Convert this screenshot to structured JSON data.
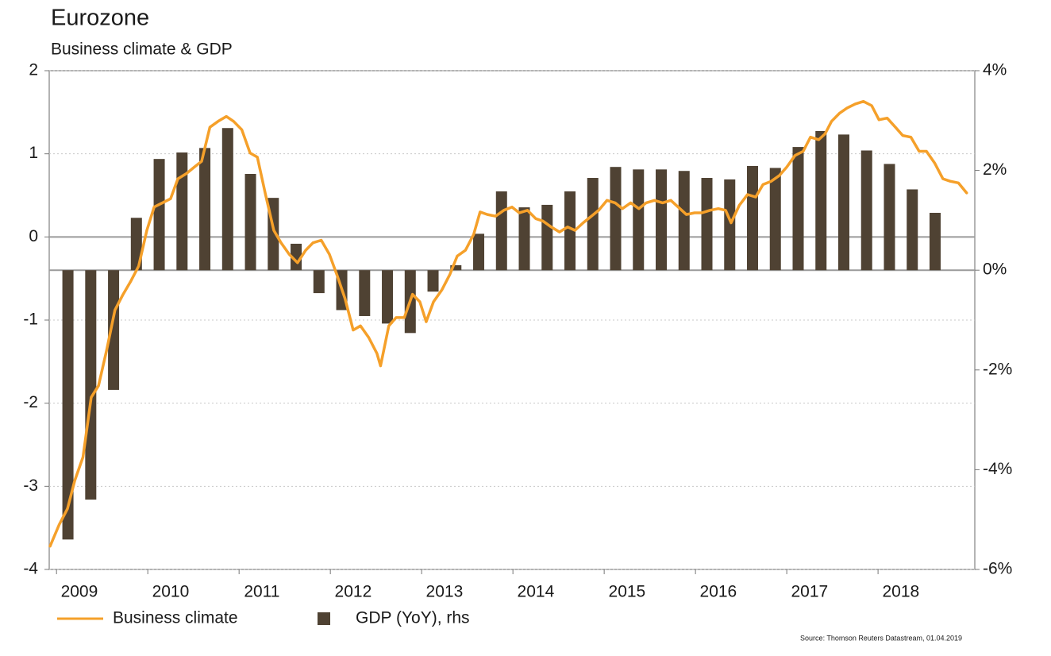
{
  "chart_data": {
    "type": "combo",
    "title": "Eurozone",
    "subtitle": "Business climate & GDP",
    "source": "Source: Thomson Reuters Datastream, 01.04.2019",
    "xlim": [
      2008.92,
      2019.06
    ],
    "xticks": [
      2009,
      2010,
      2011,
      2012,
      2013,
      2014,
      2015,
      2016,
      2017,
      2018
    ],
    "ylim": [
      -4,
      2
    ],
    "yticks": [
      -4,
      -3,
      -2,
      -1,
      0,
      1,
      2
    ],
    "y2lim": [
      -6,
      4
    ],
    "y2ticks": [
      {
        "value": -6,
        "label": "-6%"
      },
      {
        "value": -4,
        "label": "-4%"
      },
      {
        "value": -2,
        "label": "-2%"
      },
      {
        "value": 0,
        "label": "0%"
      },
      {
        "value": 2,
        "label": "2%"
      },
      {
        "value": 4,
        "label": "4%"
      }
    ],
    "grid": true,
    "legend": "bottom-left",
    "series": [
      {
        "name": "Business climate",
        "type": "line",
        "color": "#f5a02a",
        "x": [
          2008.93,
          2009.03,
          2009.12,
          2009.2,
          2009.29,
          2009.38,
          2009.46,
          2009.55,
          2009.64,
          2009.73,
          2009.81,
          2009.9,
          2009.99,
          2010.07,
          2010.16,
          2010.25,
          2010.33,
          2010.42,
          2010.51,
          2010.59,
          2010.68,
          2010.77,
          2010.86,
          2010.94,
          2011.03,
          2011.12,
          2011.2,
          2011.29,
          2011.38,
          2011.46,
          2011.55,
          2011.64,
          2011.73,
          2011.81,
          2011.9,
          2011.99,
          2012.07,
          2012.16,
          2012.25,
          2012.33,
          2012.42,
          2012.51,
          2012.55,
          2012.64,
          2012.72,
          2012.81,
          2012.9,
          2012.98,
          2013.05,
          2013.13,
          2013.22,
          2013.31,
          2013.39,
          2013.48,
          2013.57,
          2013.64,
          2013.72,
          2013.81,
          2013.9,
          2013.99,
          2014.07,
          2014.16,
          2014.25,
          2014.33,
          2014.42,
          2014.51,
          2014.6,
          2014.68,
          2014.77,
          2014.86,
          2014.94,
          2015.03,
          2015.12,
          2015.2,
          2015.29,
          2015.38,
          2015.46,
          2015.55,
          2015.64,
          2015.73,
          2015.81,
          2015.9,
          2015.99,
          2016.07,
          2016.16,
          2016.25,
          2016.33,
          2016.39,
          2016.48,
          2016.57,
          2016.66,
          2016.74,
          2016.83,
          2016.92,
          2017.0,
          2017.09,
          2017.18,
          2017.26,
          2017.35,
          2017.42,
          2017.49,
          2017.58,
          2017.66,
          2017.75,
          2017.84,
          2017.93,
          2018.01,
          2018.1,
          2018.19,
          2018.27,
          2018.36,
          2018.45,
          2018.53,
          2018.62,
          2018.71,
          2018.79,
          2018.88,
          2018.97
        ],
        "values": [
          -3.72,
          -3.46,
          -3.27,
          -2.93,
          -2.65,
          -1.93,
          -1.79,
          -1.36,
          -0.88,
          -0.69,
          -0.54,
          -0.35,
          0.08,
          0.36,
          0.41,
          0.46,
          0.7,
          0.76,
          0.84,
          0.91,
          1.32,
          1.39,
          1.45,
          1.39,
          1.29,
          1.01,
          0.96,
          0.51,
          0.08,
          -0.07,
          -0.21,
          -0.31,
          -0.16,
          -0.07,
          -0.04,
          -0.21,
          -0.45,
          -0.74,
          -1.12,
          -1.07,
          -1.21,
          -1.4,
          -1.55,
          -1.07,
          -0.97,
          -0.97,
          -0.69,
          -0.78,
          -1.02,
          -0.78,
          -0.64,
          -0.45,
          -0.23,
          -0.16,
          0.03,
          0.3,
          0.27,
          0.25,
          0.32,
          0.36,
          0.29,
          0.32,
          0.22,
          0.19,
          0.12,
          0.06,
          0.12,
          0.08,
          0.17,
          0.25,
          0.32,
          0.44,
          0.41,
          0.34,
          0.41,
          0.34,
          0.41,
          0.44,
          0.41,
          0.44,
          0.36,
          0.27,
          0.29,
          0.29,
          0.32,
          0.34,
          0.32,
          0.17,
          0.38,
          0.51,
          0.48,
          0.63,
          0.67,
          0.74,
          0.84,
          0.98,
          1.03,
          1.2,
          1.17,
          1.24,
          1.39,
          1.49,
          1.55,
          1.6,
          1.63,
          1.58,
          1.41,
          1.43,
          1.32,
          1.22,
          1.2,
          1.03,
          1.03,
          0.89,
          0.7,
          0.67,
          0.65,
          0.53
        ]
      },
      {
        "name": "GDP (YoY), rhs",
        "type": "bar",
        "axis": "y2",
        "color": "#4f4233",
        "x": [
          2009.125,
          2009.375,
          2009.625,
          2009.875,
          2010.125,
          2010.375,
          2010.625,
          2010.875,
          2011.125,
          2011.375,
          2011.625,
          2011.875,
          2012.125,
          2012.375,
          2012.625,
          2012.875,
          2013.125,
          2013.375,
          2013.625,
          2013.875,
          2014.125,
          2014.375,
          2014.625,
          2014.875,
          2015.125,
          2015.375,
          2015.625,
          2015.875,
          2016.125,
          2016.375,
          2016.625,
          2016.875,
          2017.125,
          2017.375,
          2017.625,
          2017.875,
          2018.125,
          2018.375,
          2018.625
        ],
        "values": [
          -5.4,
          -4.6,
          -2.4,
          1.05,
          2.23,
          2.36,
          2.45,
          2.85,
          1.93,
          1.45,
          0.53,
          -0.46,
          -0.8,
          -0.92,
          -1.07,
          -1.26,
          -0.43,
          0.1,
          0.73,
          1.58,
          1.26,
          1.31,
          1.58,
          1.85,
          2.07,
          2.02,
          2.02,
          1.99,
          1.85,
          1.82,
          2.09,
          2.05,
          2.47,
          2.79,
          2.72,
          2.4,
          2.13,
          1.62,
          1.15
        ]
      }
    ]
  }
}
